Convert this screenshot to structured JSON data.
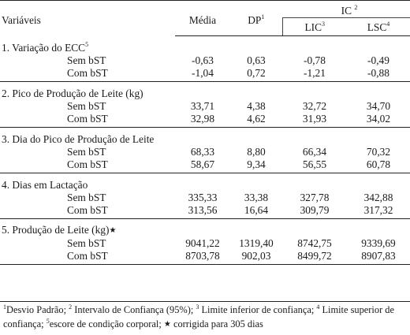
{
  "header": {
    "variables": "Variáveis",
    "mean": "Média",
    "sd": "DP",
    "sd_sup": "1",
    "ci": "IC",
    "ci_sup": "2",
    "lic": "LIC",
    "lic_sup": "3",
    "lsc": "LSC",
    "lsc_sup": "4"
  },
  "sections": [
    {
      "title": "1. Variação do ECC",
      "title_sup": "5",
      "rows": [
        {
          "label": "Sem bST",
          "mean": "-0,63",
          "sd": "0,63",
          "lic": "-0,78",
          "lsc": "-0,49"
        },
        {
          "label": "Com bST",
          "mean": "-1,04",
          "sd": "0,72",
          "lic": "-1,21",
          "lsc": "-0,88"
        }
      ]
    },
    {
      "title": "2. Pico de Produção de Leite (kg)",
      "title_sup": "",
      "rows": [
        {
          "label": "Sem bST",
          "mean": "33,71",
          "sd": "4,38",
          "lic": "32,72",
          "lsc": "34,70"
        },
        {
          "label": "Com bST",
          "mean": "32,98",
          "sd": "4,62",
          "lic": "31,93",
          "lsc": "34,02"
        }
      ]
    },
    {
      "title": "3. Dia do Pico de Produção de Leite",
      "title_sup": "",
      "rows": [
        {
          "label": "Sem bST",
          "mean": "68,33",
          "sd": "8,80",
          "lic": "66,34",
          "lsc": "70,32"
        },
        {
          "label": "Com bST",
          "mean": "58,67",
          "sd": "9,34",
          "lic": "56,55",
          "lsc": "60,78"
        }
      ]
    },
    {
      "title": "4. Dias em Lactação",
      "title_sup": "",
      "rows": [
        {
          "label": "Sem bST",
          "mean": "335,33",
          "sd": "33,38",
          "lic": "327,78",
          "lsc": "342,88"
        },
        {
          "label": "Com bST",
          "mean": "313,56",
          "sd": "16,64",
          "lic": "309,79",
          "lsc": "317,32"
        }
      ]
    },
    {
      "title": "5. Produção de Leite (kg)",
      "title_star": "★",
      "rows": [
        {
          "label": "Sem bST",
          "mean": "9041,22",
          "sd": "1319,40",
          "lic": "8742,75",
          "lsc": "9339,69"
        },
        {
          "label": "Com bST",
          "mean": "8703,78",
          "sd": "902,03",
          "lic": "8499,72",
          "lsc": "8907,83"
        }
      ]
    }
  ],
  "footnote": {
    "n1": "1",
    "t1": "Desvio Padrão; ",
    "n2": "2",
    "t2": " Intervalo de Confiança (95%); ",
    "n3": "3",
    "t3": " Limite inferior de confiança; ",
    "n4": "4",
    "t4": " Limite superior de confiança; ",
    "n5": "5",
    "t5": "escore de condição corporal; ",
    "star": "★",
    "t6": " corrigida para 305 dias"
  }
}
